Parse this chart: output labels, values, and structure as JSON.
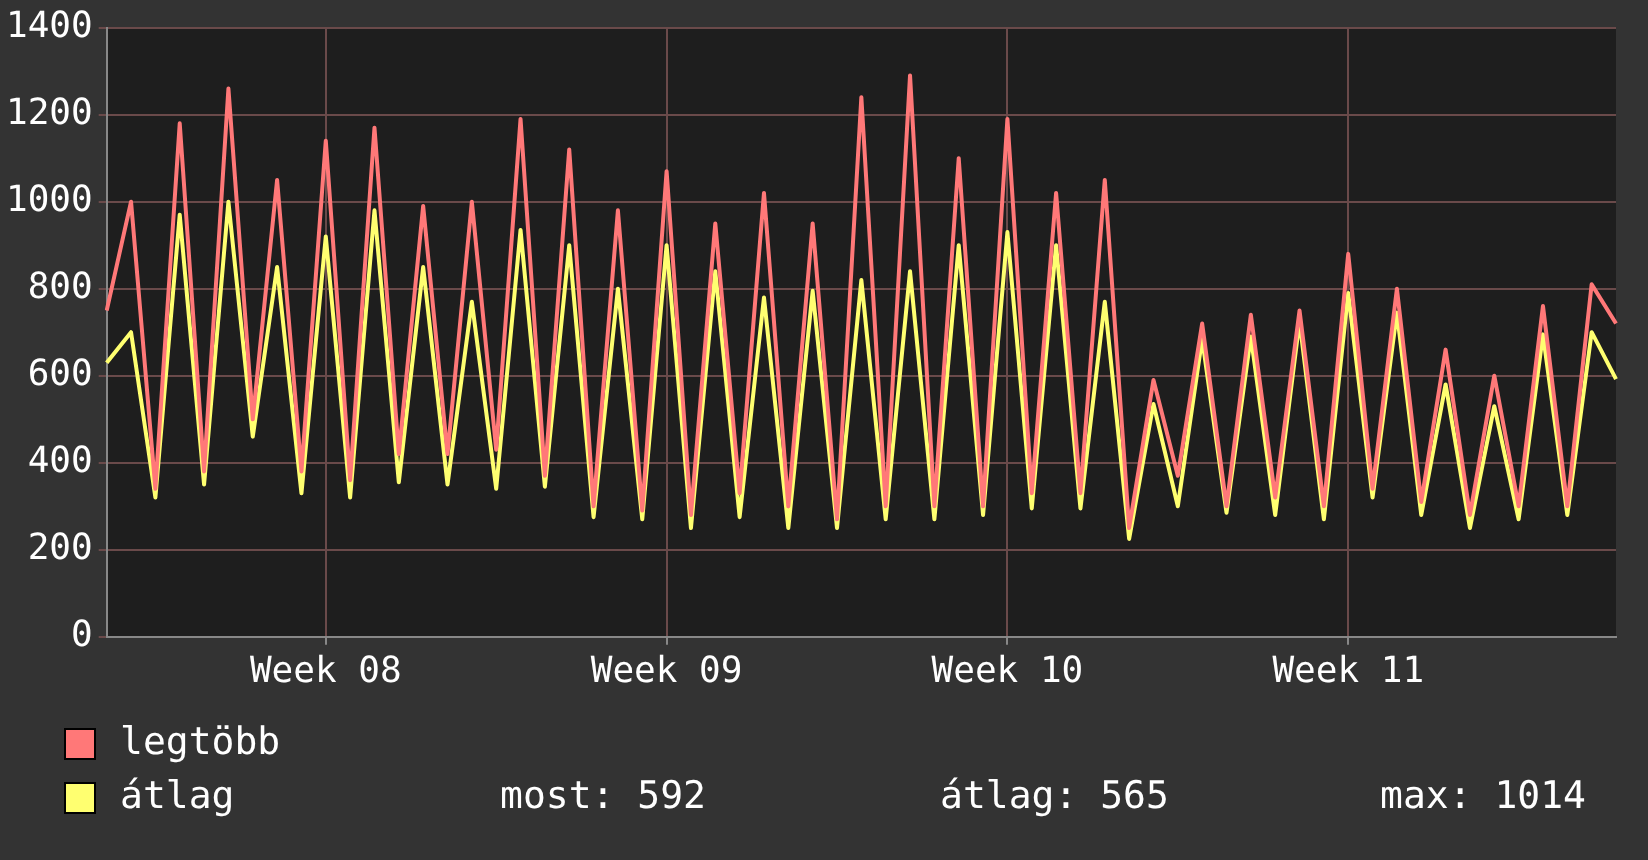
{
  "chart_data": {
    "type": "line",
    "categories": [
      null,
      null,
      null,
      null,
      null,
      null,
      null,
      null,
      null,
      "Week 08",
      null,
      null,
      null,
      null,
      null,
      null,
      null,
      null,
      null,
      null,
      null,
      null,
      null,
      "Week 09",
      null,
      null,
      null,
      null,
      null,
      null,
      null,
      null,
      null,
      null,
      null,
      null,
      null,
      "Week 10",
      null,
      null,
      null,
      null,
      null,
      null,
      null,
      null,
      null,
      null,
      null,
      null,
      null,
      "Week 11",
      null,
      null,
      null,
      null,
      null,
      null,
      null,
      null,
      null,
      null,
      null
    ],
    "series": [
      {
        "name": "legtöbb",
        "color": "#ff7878",
        "values": [
          750,
          1000,
          340,
          1180,
          380,
          1260,
          500,
          1050,
          380,
          1140,
          360,
          1170,
          420,
          990,
          420,
          1000,
          430,
          1190,
          370,
          1120,
          300,
          980,
          290,
          1070,
          280,
          950,
          330,
          1020,
          300,
          950,
          270,
          1240,
          300,
          1290,
          300,
          1100,
          300,
          1190,
          330,
          1020,
          330,
          1050,
          250,
          590,
          370,
          720,
          300,
          740,
          320,
          750,
          300,
          880,
          340,
          800,
          310,
          660,
          280,
          600,
          300,
          760,
          300,
          810,
          720
        ]
      },
      {
        "name": "átlag",
        "color": "#ffff70",
        "values": [
          630,
          700,
          320,
          970,
          350,
          1000,
          460,
          850,
          330,
          920,
          320,
          980,
          355,
          850,
          350,
          770,
          340,
          935,
          345,
          900,
          275,
          800,
          270,
          900,
          250,
          840,
          275,
          780,
          250,
          795,
          250,
          820,
          270,
          840,
          270,
          900,
          280,
          930,
          295,
          900,
          295,
          770,
          225,
          535,
          300,
          685,
          285,
          690,
          280,
          725,
          270,
          790,
          320,
          745,
          280,
          580,
          250,
          530,
          270,
          695,
          280,
          700,
          592
        ]
      }
    ],
    "ylim": [
      0,
      1400
    ],
    "yticks": [
      0,
      200,
      400,
      600,
      800,
      1000,
      1200,
      1400
    ],
    "grid": true,
    "legend": "bottom",
    "marker": "none",
    "line_style": "solid",
    "annotations": [
      "most: 592",
      "átlag: 565",
      "max: 1014"
    ]
  }
}
